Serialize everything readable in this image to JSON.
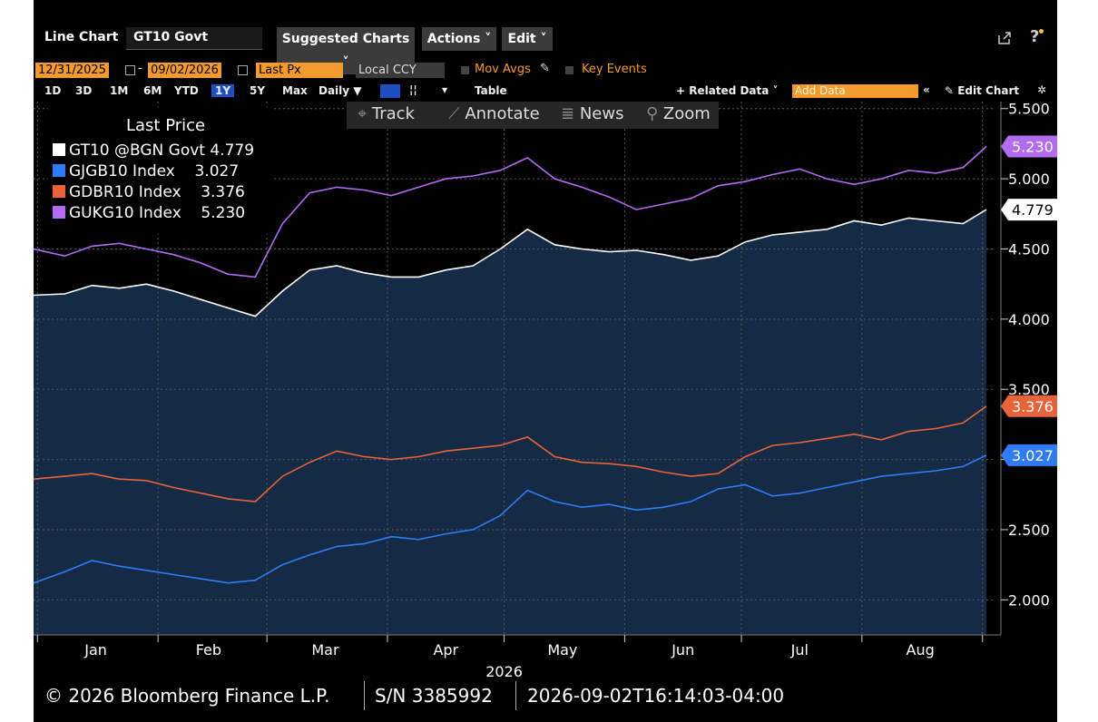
{
  "header": {
    "chart_type_label": "Line Chart",
    "security": "GT10 Govt",
    "menus": [
      "Suggested Charts ˅",
      "Actions ˅",
      "Edit ˅"
    ],
    "icons": [
      "export-icon",
      "help-icon"
    ]
  },
  "controls": {
    "start_date": "12/31/2025",
    "end_date": "09/02/2026",
    "field": "Last Px",
    "currency": "Local CCY",
    "mov_avgs": "Mov Avgs",
    "key_events": "Key Events",
    "periods": [
      "1D",
      "3D",
      "1M",
      "6M",
      "YTD",
      "1Y",
      "5Y",
      "Max"
    ],
    "active_period": "1Y",
    "frequency": "Daily ▼",
    "table": "Table",
    "related_data": "+ Related Data ˅",
    "add_data_placeholder": "Add Data",
    "edit_chart": "Edit Chart"
  },
  "chart_toolbar": {
    "track": "Track",
    "annotate": "Annotate",
    "news": "News",
    "zoom": "Zoom"
  },
  "legend": {
    "title": "Last Price",
    "rows": [
      {
        "label": "GT10 @BGN Govt",
        "value": "4.779",
        "color": "#ffffff"
      },
      {
        "label": "GJGB10 Index",
        "value": "3.027",
        "color": "#2f7cf6"
      },
      {
        "label": "GDBR10 Index",
        "value": "3.376",
        "color": "#e8623a"
      },
      {
        "label": "GUKG10 Index",
        "value": "5.230",
        "color": "#b36bf2"
      }
    ]
  },
  "footer": {
    "copyright": "© 2026 Bloomberg Finance L.P.",
    "serial": "S/N 3385992",
    "timestamp": "2026-09-02T16:14:03-04:00"
  },
  "chart_data": {
    "type": "line",
    "x_year_label": "2026",
    "x_tick_labels": [
      "Jan",
      "Feb",
      "Mar",
      "Apr",
      "May",
      "Jun",
      "Jul",
      "Aug"
    ],
    "y_tick_labels": [
      "5.500",
      "5.000",
      "4.500",
      "4.000",
      "3.500",
      "3.000",
      "2.500",
      "2.000"
    ],
    "ylim": [
      1.75,
      5.55
    ],
    "xlim": [
      "2025-12-31",
      "2026-09-02"
    ],
    "grid": true,
    "colors": {
      "GT10": "#ffffff",
      "GJGB10": "#2f7cf6",
      "GDBR10": "#e8623a",
      "GUKG10": "#b36bf2",
      "area": "#152a45"
    },
    "x": [
      "2025-12-31",
      "2026-01-08",
      "2026-01-15",
      "2026-01-22",
      "2026-01-29",
      "2026-02-05",
      "2026-02-12",
      "2026-02-19",
      "2026-02-26",
      "2026-03-05",
      "2026-03-12",
      "2026-03-19",
      "2026-03-26",
      "2026-04-02",
      "2026-04-09",
      "2026-04-16",
      "2026-04-23",
      "2026-04-30",
      "2026-05-07",
      "2026-05-14",
      "2026-05-21",
      "2026-05-28",
      "2026-06-04",
      "2026-06-11",
      "2026-06-18",
      "2026-06-25",
      "2026-07-02",
      "2026-07-09",
      "2026-07-16",
      "2026-07-23",
      "2026-07-30",
      "2026-08-06",
      "2026-08-13",
      "2026-08-20",
      "2026-08-27",
      "2026-09-02"
    ],
    "series": [
      {
        "name": "GT10 @BGN Govt",
        "values": [
          4.17,
          4.18,
          4.24,
          4.22,
          4.25,
          4.2,
          4.14,
          4.08,
          4.02,
          4.2,
          4.35,
          4.38,
          4.33,
          4.3,
          4.3,
          4.35,
          4.38,
          4.5,
          4.64,
          4.53,
          4.5,
          4.48,
          4.49,
          4.46,
          4.42,
          4.45,
          4.55,
          4.6,
          4.62,
          4.64,
          4.7,
          4.67,
          4.72,
          4.7,
          4.68,
          4.78
        ]
      },
      {
        "name": "GJGB10 Index",
        "values": [
          2.12,
          2.2,
          2.28,
          2.24,
          2.21,
          2.18,
          2.15,
          2.12,
          2.14,
          2.25,
          2.32,
          2.38,
          2.4,
          2.45,
          2.43,
          2.47,
          2.5,
          2.6,
          2.78,
          2.7,
          2.66,
          2.68,
          2.64,
          2.66,
          2.7,
          2.79,
          2.82,
          2.74,
          2.76,
          2.8,
          2.84,
          2.88,
          2.9,
          2.92,
          2.95,
          3.03
        ]
      },
      {
        "name": "GDBR10 Index",
        "values": [
          2.86,
          2.88,
          2.9,
          2.86,
          2.85,
          2.8,
          2.76,
          2.72,
          2.7,
          2.88,
          2.98,
          3.06,
          3.02,
          3.0,
          3.02,
          3.06,
          3.08,
          3.1,
          3.16,
          3.02,
          2.98,
          2.97,
          2.95,
          2.91,
          2.88,
          2.9,
          3.02,
          3.1,
          3.12,
          3.15,
          3.18,
          3.14,
          3.2,
          3.22,
          3.26,
          3.38
        ]
      },
      {
        "name": "GUKG10 Index",
        "values": [
          4.5,
          4.45,
          4.52,
          4.54,
          4.5,
          4.46,
          4.4,
          4.32,
          4.3,
          4.68,
          4.9,
          4.94,
          4.92,
          4.88,
          4.94,
          5.0,
          5.02,
          5.06,
          5.15,
          5.0,
          4.94,
          4.87,
          4.78,
          4.82,
          4.86,
          4.95,
          4.98,
          5.03,
          5.07,
          5.0,
          4.96,
          5.0,
          5.06,
          5.04,
          5.08,
          5.23
        ]
      }
    ]
  }
}
